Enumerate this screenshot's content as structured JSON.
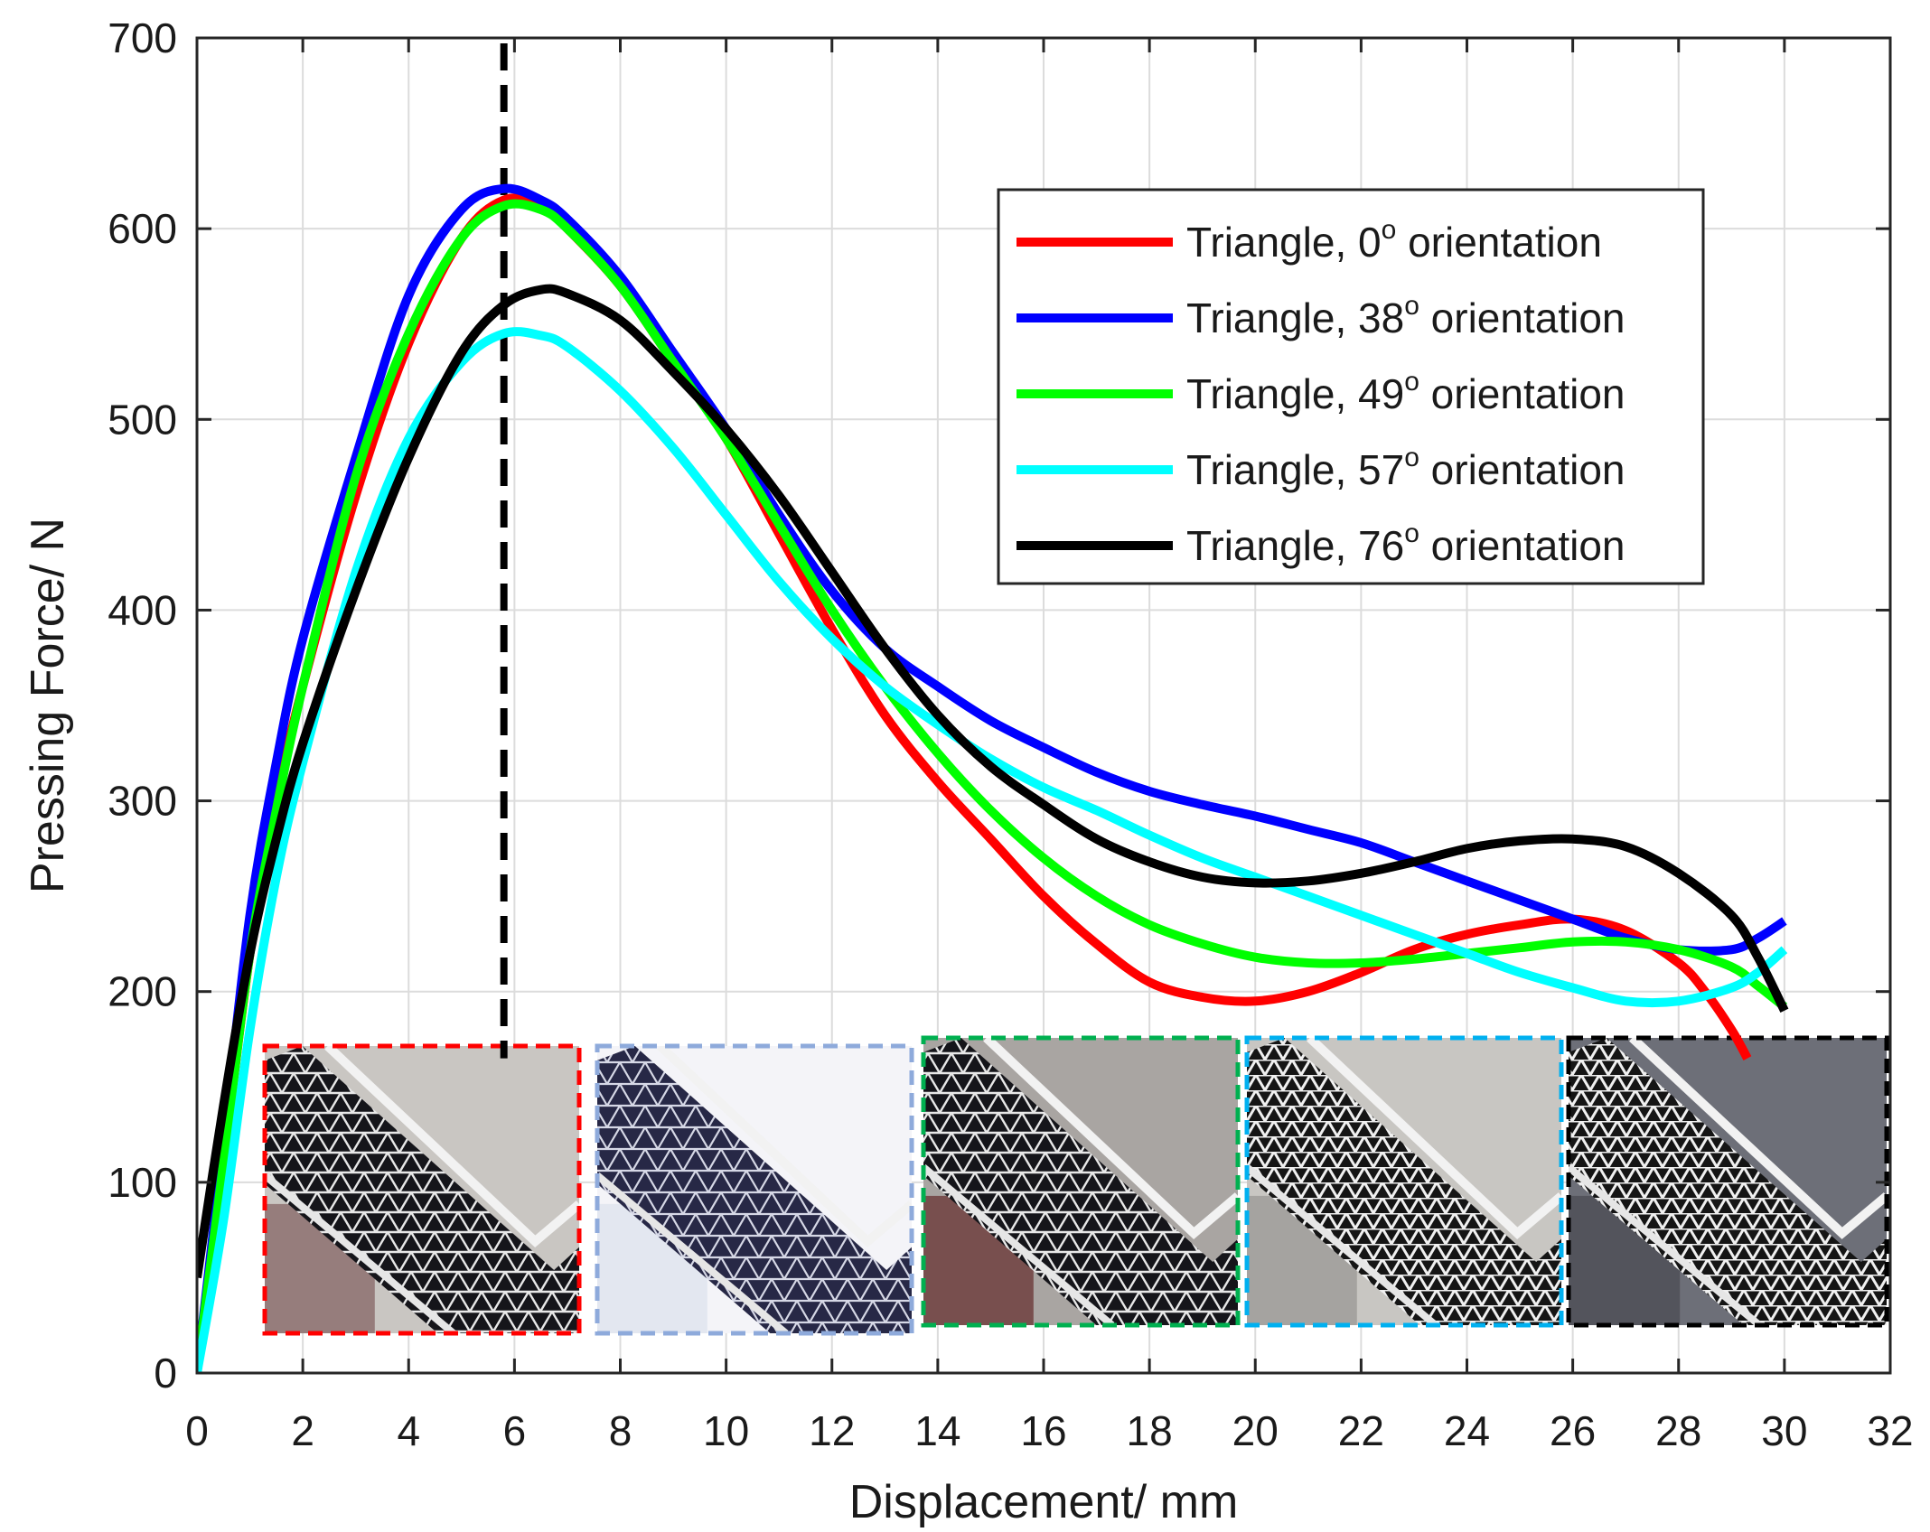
{
  "chart_data": {
    "type": "line",
    "title": "",
    "xlabel": "Displacement/ mm",
    "ylabel": "Pressing Force/ N",
    "xlim": [
      0,
      32
    ],
    "ylim": [
      0,
      700
    ],
    "xticks": [
      0,
      2,
      4,
      6,
      8,
      10,
      12,
      14,
      16,
      18,
      20,
      22,
      24,
      26,
      28,
      30,
      32
    ],
    "yticks": [
      0,
      100,
      200,
      300,
      400,
      500,
      600,
      700
    ],
    "grid": true,
    "legend_position": "top-right",
    "reference_line": {
      "x": 5.8,
      "style": "dashed",
      "color": "#000000"
    },
    "series": [
      {
        "name": "Triangle, 0° orientation",
        "label_prefix": "Triangle, 0",
        "label_sup": "o",
        "label_suffix": " orientation",
        "color": "#ff0000",
        "x": [
          0,
          0.5,
          1,
          1.5,
          2,
          3,
          4,
          5,
          5.8,
          6.5,
          7,
          8,
          9,
          10,
          11,
          12,
          13,
          14,
          15,
          16,
          17,
          18,
          19,
          20,
          21,
          22,
          23,
          24,
          25,
          26,
          27,
          28,
          28.5,
          29,
          29.3
        ],
        "y": [
          0,
          110,
          220,
          300,
          360,
          460,
          540,
          595,
          615,
          612,
          600,
          570,
          530,
          490,
          440,
          390,
          345,
          310,
          280,
          250,
          225,
          205,
          197,
          195,
          200,
          210,
          222,
          230,
          235,
          238,
          232,
          215,
          200,
          180,
          165
        ]
      },
      {
        "name": "Triangle, 38° orientation",
        "label_prefix": "Triangle, 38",
        "label_sup": "o",
        "label_suffix": " orientation",
        "color": "#0000ff",
        "x": [
          0,
          0.5,
          1,
          1.5,
          2,
          3,
          4,
          5,
          5.8,
          6.5,
          7,
          8,
          9,
          10,
          11,
          12,
          13,
          14,
          15,
          16,
          17,
          18,
          19,
          20,
          21,
          22,
          23,
          24,
          25,
          26,
          27,
          28,
          29,
          29.5,
          30
        ],
        "y": [
          0,
          120,
          240,
          320,
          385,
          480,
          565,
          610,
          621,
          615,
          605,
          575,
          535,
          495,
          450,
          410,
          380,
          360,
          342,
          328,
          315,
          305,
          298,
          292,
          285,
          278,
          268,
          258,
          248,
          238,
          228,
          222,
          222,
          228,
          237
        ]
      },
      {
        "name": "Triangle, 49° orientation",
        "label_prefix": "Triangle, 49",
        "label_sup": "o",
        "label_suffix": " orientation",
        "color": "#00ff00",
        "x": [
          0,
          0.5,
          1,
          1.5,
          2,
          3,
          4,
          5,
          5.8,
          6.5,
          7,
          8,
          9,
          10,
          11,
          12,
          13,
          14,
          15,
          16,
          17,
          18,
          19,
          20,
          21,
          22,
          23,
          24,
          25,
          26,
          27,
          28,
          29,
          29.5,
          30
        ],
        "y": [
          0,
          110,
          220,
          295,
          360,
          470,
          545,
          595,
          612,
          610,
          600,
          570,
          530,
          490,
          445,
          400,
          360,
          325,
          295,
          270,
          250,
          235,
          225,
          218,
          215,
          215,
          217,
          220,
          223,
          226,
          226,
          222,
          213,
          203,
          192
        ]
      },
      {
        "name": "Triangle, 57° orientation",
        "label_prefix": "Triangle, 57",
        "label_sup": "o",
        "label_suffix": " orientation",
        "color": "#00ffff",
        "x": [
          0,
          0.5,
          1,
          1.5,
          2,
          3,
          4,
          5,
          5.8,
          6.5,
          7,
          8,
          9,
          10,
          11,
          12,
          13,
          14,
          15,
          16,
          17,
          18,
          19,
          20,
          21,
          22,
          23,
          24,
          25,
          26,
          27,
          28,
          29,
          29.5,
          30
        ],
        "y": [
          0,
          80,
          180,
          260,
          320,
          420,
          490,
          530,
          545,
          544,
          538,
          515,
          485,
          450,
          415,
          385,
          360,
          340,
          322,
          307,
          295,
          282,
          270,
          260,
          250,
          240,
          230,
          220,
          210,
          202,
          195,
          195,
          202,
          210,
          222
        ]
      },
      {
        "name": "Triangle, 76° orientation",
        "label_prefix": "Triangle, 76",
        "label_sup": "o",
        "label_suffix": " orientation",
        "color": "#000000",
        "x": [
          0,
          0.5,
          1,
          1.5,
          2,
          3,
          4,
          5,
          5.8,
          6.5,
          7,
          8,
          9,
          10,
          11,
          12,
          13,
          14,
          15,
          16,
          17,
          18,
          19,
          20,
          21,
          22,
          23,
          24,
          25,
          26,
          27,
          28,
          29,
          29.5,
          30
        ],
        "y": [
          50,
          140,
          220,
          280,
          330,
          410,
          480,
          535,
          560,
          568,
          566,
          552,
          525,
          495,
          460,
          420,
          380,
          345,
          318,
          298,
          280,
          268,
          260,
          257,
          258,
          262,
          268,
          275,
          279,
          280,
          276,
          262,
          240,
          218,
          190
        ]
      }
    ],
    "insets": [
      {
        "name": "Triangle 0° specimen",
        "border_color": "#ff0000"
      },
      {
        "name": "Triangle 38° specimen",
        "border_color": "#8eaadb"
      },
      {
        "name": "Triangle 49° specimen",
        "border_color": "#00b050"
      },
      {
        "name": "Triangle 57° specimen",
        "border_color": "#00b0f0"
      },
      {
        "name": "Triangle 76° specimen",
        "border_color": "#000000"
      }
    ]
  }
}
